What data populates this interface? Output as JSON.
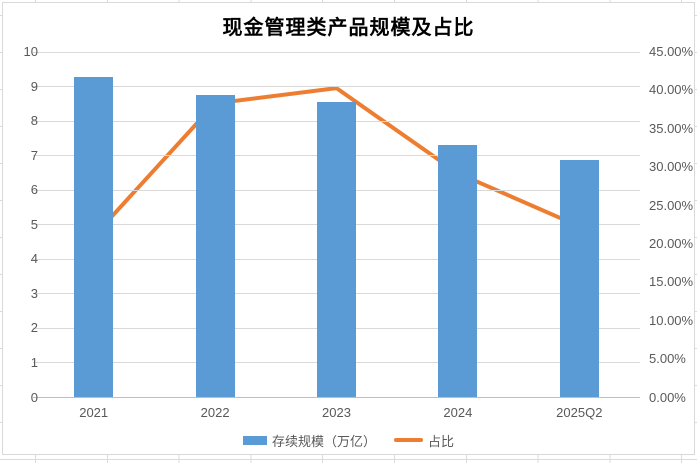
{
  "title": "现金管理类产品规模及占比",
  "chart_data": {
    "type": "combo-bar-line",
    "title": "现金管理类产品规模及占比",
    "categories": [
      "2021",
      "2022",
      "2023",
      "2024",
      "2025Q2"
    ],
    "series": [
      {
        "name": "存续规模（万亿）",
        "type": "bar",
        "axis": "left",
        "unit": "万亿",
        "color": "#5B9BD5",
        "values": [
          9.29,
          8.76,
          8.54,
          7.3,
          6.87
        ]
      },
      {
        "name": "占比",
        "type": "line",
        "axis": "right",
        "unit": "%",
        "color": "#ED7D31",
        "values": [
          21.0,
          38.3,
          40.3,
          29.2,
          22.3
        ]
      }
    ],
    "left_axis": {
      "min": 0,
      "max": 10,
      "step": 1,
      "tick_labels": [
        "0",
        "1",
        "2",
        "3",
        "4",
        "5",
        "6",
        "7",
        "8",
        "9",
        "10"
      ]
    },
    "right_axis": {
      "min": 0,
      "max": 45,
      "step": 5,
      "tick_labels": [
        "0.00%",
        "5.00%",
        "10.00%",
        "15.00%",
        "20.00%",
        "25.00%",
        "30.00%",
        "35.00%",
        "40.00%",
        "45.00%"
      ]
    },
    "grid": true,
    "legend_position": "bottom"
  },
  "colors": {
    "bar": "#5B9BD5",
    "line": "#ED7D31",
    "axis_text": "#595959",
    "plot_gridline": "#D9D9D9",
    "axis_line": "#BFBFBF",
    "cell_gridline": "#D7DCE2",
    "chart_border": "#D9D9D9",
    "title_text": "#000000"
  }
}
